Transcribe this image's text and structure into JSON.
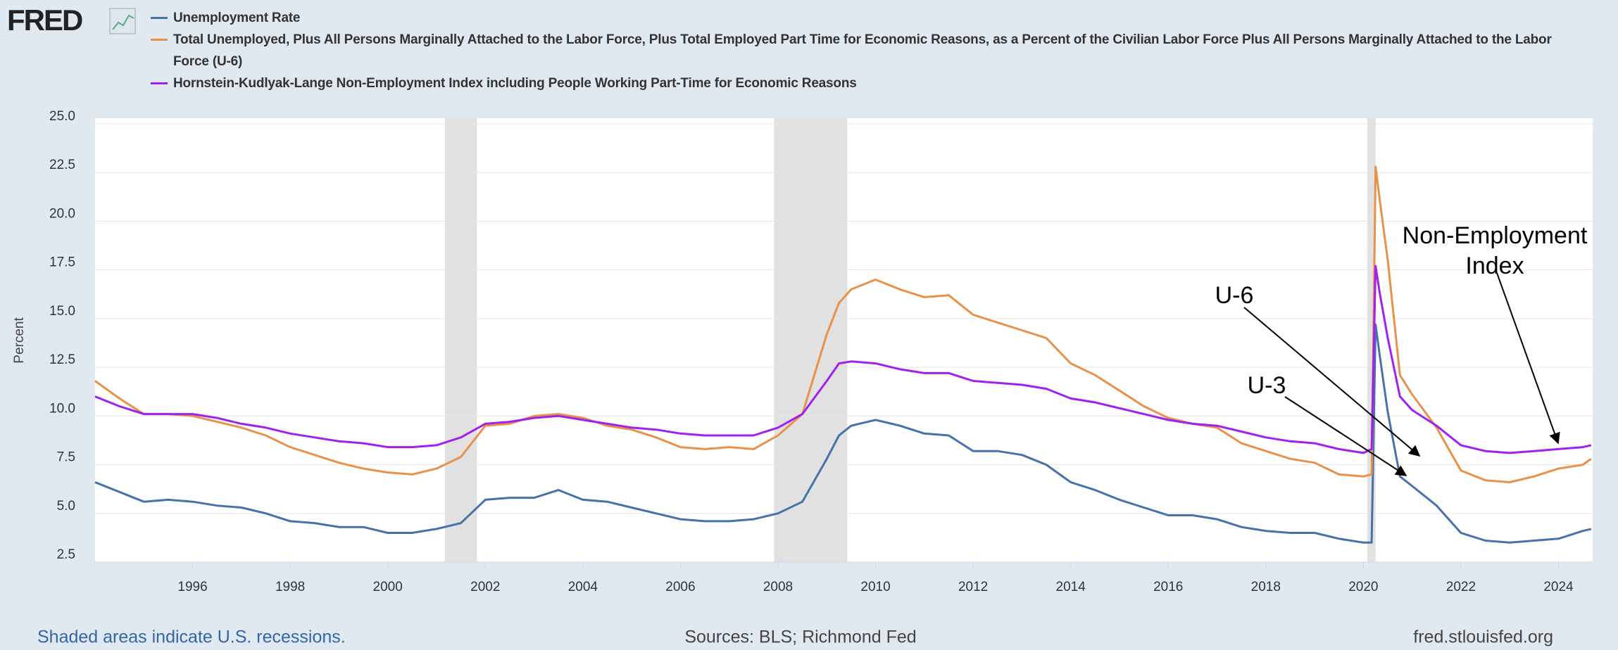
{
  "chart_data": {
    "type": "line",
    "logo": "FRED",
    "ylabel": "Percent",
    "note": "Shaded areas indicate U.S. recessions.",
    "source": "Sources: BLS; Richmond Fed",
    "site": "fred.stlouisfed.org",
    "xlim": [
      1994,
      2024.7
    ],
    "xticks": [
      1996,
      1998,
      2000,
      2002,
      2004,
      2006,
      2008,
      2010,
      2012,
      2014,
      2016,
      2018,
      2020,
      2022,
      2024
    ],
    "ylim": [
      2.5,
      25
    ],
    "yticks": [
      2.5,
      {
        "value": 5,
        "label": "5.0"
      },
      7.5,
      {
        "value": 10,
        "label": "10.0"
      },
      12.5,
      {
        "value": 15,
        "label": "15.0"
      },
      17.5,
      {
        "value": 20,
        "label": "20.0"
      },
      22.5,
      {
        "value": 25,
        "label": "25.0"
      }
    ],
    "grid": true,
    "recessions": [
      [
        2001.17,
        2001.83
      ],
      [
        2007.92,
        2009.42
      ],
      [
        2020.08,
        2020.25
      ]
    ],
    "recession_color": "#e1e1e1",
    "x": [
      1994,
      1994.5,
      1995,
      1995.5,
      1996,
      1996.5,
      1997,
      1997.5,
      1998,
      1998.5,
      1999,
      1999.5,
      2000,
      2000.5,
      2001,
      2001.5,
      2002,
      2002.5,
      2003,
      2003.5,
      2004,
      2004.5,
      2005,
      2005.5,
      2006,
      2006.5,
      2007,
      2007.5,
      2008,
      2008.5,
      2009,
      2009.25,
      2009.5,
      2010,
      2010.5,
      2011,
      2011.5,
      2012,
      2012.5,
      2013,
      2013.5,
      2014,
      2014.5,
      2015,
      2015.5,
      2016,
      2016.5,
      2017,
      2017.5,
      2018,
      2018.5,
      2019,
      2019.5,
      2020,
      2020.17,
      2020.25,
      2020.33,
      2020.5,
      2020.75,
      2021,
      2021.5,
      2022,
      2022.5,
      2023,
      2023.5,
      2024,
      2024.5,
      2024.67
    ],
    "series": [
      {
        "name": "Unemployment Rate",
        "color": "#4572a7",
        "values": [
          6.6,
          6.1,
          5.6,
          5.7,
          5.6,
          5.4,
          5.3,
          5.0,
          4.6,
          4.5,
          4.3,
          4.3,
          4.0,
          4.0,
          4.2,
          4.5,
          5.7,
          5.8,
          5.8,
          6.2,
          5.7,
          5.6,
          5.3,
          5.0,
          4.7,
          4.6,
          4.6,
          4.7,
          5.0,
          5.6,
          7.8,
          9.0,
          9.5,
          9.8,
          9.5,
          9.1,
          9.0,
          8.2,
          8.2,
          8.0,
          7.5,
          6.6,
          6.2,
          5.7,
          5.3,
          4.9,
          4.9,
          4.7,
          4.3,
          4.1,
          4.0,
          4.0,
          3.7,
          3.5,
          3.5,
          14.7,
          13.2,
          10.2,
          6.9,
          6.4,
          5.4,
          4.0,
          3.6,
          3.5,
          3.6,
          3.7,
          4.1,
          4.2
        ]
      },
      {
        "name": "Total Unemployed, Plus All Persons Marginally Attached to the Labor Force, Plus Total Employed Part Time for Economic Reasons, as a Percent of the Civilian Labor Force Plus All Persons Marginally Attached to the Labor Force (U-6)",
        "color": "#e8914a",
        "values": [
          11.8,
          10.9,
          10.1,
          10.1,
          10.0,
          9.7,
          9.4,
          9.0,
          8.4,
          8.0,
          7.6,
          7.3,
          7.1,
          7.0,
          7.3,
          7.9,
          9.5,
          9.6,
          10.0,
          10.1,
          9.9,
          9.5,
          9.3,
          8.9,
          8.4,
          8.3,
          8.4,
          8.3,
          9.0,
          10.1,
          14.2,
          15.8,
          16.5,
          17.0,
          16.5,
          16.1,
          16.2,
          15.2,
          14.8,
          14.4,
          14.0,
          12.7,
          12.1,
          11.3,
          10.5,
          9.9,
          9.6,
          9.4,
          8.6,
          8.2,
          7.8,
          7.6,
          7.0,
          6.9,
          7.0,
          22.8,
          21.2,
          18.0,
          12.1,
          11.1,
          9.4,
          7.2,
          6.7,
          6.6,
          6.9,
          7.3,
          7.5,
          7.8
        ]
      },
      {
        "name": "Hornstein-Kudlyak-Lange Non-Employment Index including People Working Part-Time for Economic Reasons",
        "color": "#a020f0",
        "values": [
          11.0,
          10.5,
          10.1,
          10.1,
          10.1,
          9.9,
          9.6,
          9.4,
          9.1,
          8.9,
          8.7,
          8.6,
          8.4,
          8.4,
          8.5,
          8.9,
          9.6,
          9.7,
          9.9,
          10.0,
          9.8,
          9.6,
          9.4,
          9.3,
          9.1,
          9.0,
          9.0,
          9.0,
          9.4,
          10.1,
          11.8,
          12.7,
          12.8,
          12.7,
          12.4,
          12.2,
          12.2,
          11.8,
          11.7,
          11.6,
          11.4,
          10.9,
          10.7,
          10.4,
          10.1,
          9.8,
          9.6,
          9.5,
          9.2,
          8.9,
          8.7,
          8.6,
          8.3,
          8.1,
          8.3,
          17.7,
          16.4,
          14.0,
          11.0,
          10.3,
          9.5,
          8.5,
          8.2,
          8.1,
          8.2,
          8.3,
          8.4,
          8.5
        ]
      }
    ],
    "annotations": [
      {
        "lines": [
          "Non-Employment",
          "Index"
        ]
      },
      {
        "lines": [
          "U-6"
        ]
      },
      {
        "lines": [
          "U-3"
        ]
      }
    ]
  }
}
